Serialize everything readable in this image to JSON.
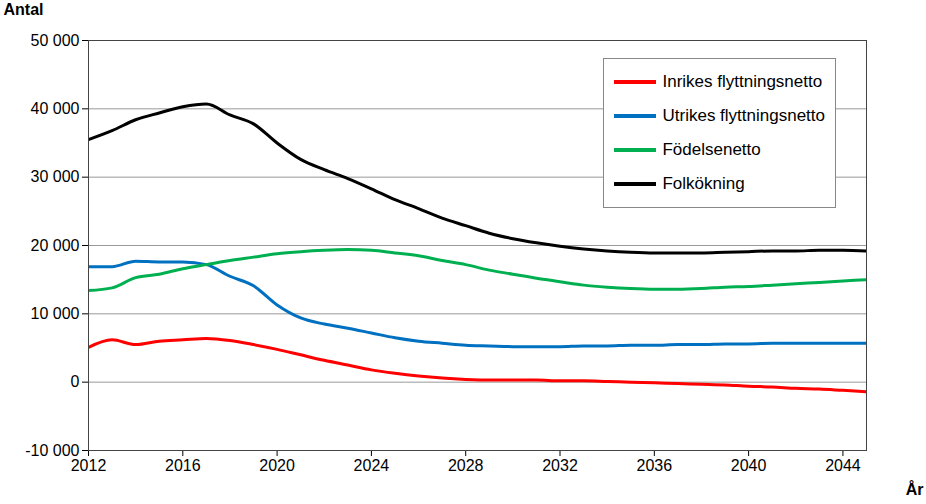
{
  "chart_data": {
    "type": "line",
    "x_label": "År",
    "y_label": "Antal",
    "x": [
      2012,
      2013,
      2014,
      2015,
      2016,
      2017,
      2018,
      2019,
      2020,
      2021,
      2022,
      2023,
      2024,
      2025,
      2026,
      2027,
      2028,
      2029,
      2030,
      2031,
      2032,
      2033,
      2034,
      2035,
      2036,
      2037,
      2038,
      2039,
      2040,
      2041,
      2042,
      2043,
      2044,
      2045
    ],
    "series": [
      {
        "name": "Inrikes flyttningsnetto",
        "color": "#ff0000",
        "values": [
          5100,
          6200,
          5500,
          6000,
          6200,
          6400,
          6100,
          5500,
          4800,
          4000,
          3200,
          2500,
          1800,
          1300,
          900,
          600,
          400,
          300,
          300,
          300,
          200,
          200,
          100,
          0,
          -100,
          -200,
          -300,
          -400,
          -600,
          -700,
          -900,
          -1000,
          -1200,
          -1400
        ]
      },
      {
        "name": "Utrikes flyttningsnetto",
        "color": "#0070c0",
        "values": [
          16900,
          16900,
          17700,
          17600,
          17600,
          17200,
          15500,
          14100,
          11300,
          9400,
          8500,
          7900,
          7200,
          6500,
          6000,
          5700,
          5400,
          5300,
          5200,
          5200,
          5200,
          5300,
          5300,
          5400,
          5400,
          5500,
          5500,
          5600,
          5600,
          5700,
          5700,
          5700,
          5700,
          5700
        ]
      },
      {
        "name": "Födelsenetto",
        "color": "#00b050",
        "values": [
          13400,
          13800,
          15300,
          15800,
          16600,
          17200,
          17800,
          18300,
          18800,
          19100,
          19300,
          19400,
          19300,
          18900,
          18500,
          17800,
          17200,
          16400,
          15800,
          15200,
          14700,
          14200,
          13900,
          13700,
          13600,
          13600,
          13700,
          13900,
          14000,
          14200,
          14400,
          14600,
          14800,
          15000
        ]
      },
      {
        "name": "Folkökning",
        "color": "#000000",
        "values": [
          35500,
          36800,
          38400,
          39400,
          40300,
          40700,
          39100,
          37800,
          35000,
          32600,
          31100,
          29800,
          28300,
          26700,
          25400,
          24000,
          22900,
          21800,
          21000,
          20400,
          19900,
          19500,
          19200,
          19000,
          18900,
          18900,
          18900,
          19000,
          19100,
          19200,
          19200,
          19300,
          19300,
          19200
        ]
      }
    ],
    "xlim": [
      2012,
      2045
    ],
    "xticks": [
      2012,
      2016,
      2020,
      2024,
      2028,
      2032,
      2036,
      2040,
      2044
    ],
    "ylim": [
      -10000,
      50000
    ],
    "yticks": [
      {
        "value": -10000,
        "label": "-10 000"
      },
      0,
      {
        "value": 10000,
        "label": "10 000"
      },
      {
        "value": 20000,
        "label": "20 000"
      },
      {
        "value": 30000,
        "label": "30 000"
      },
      {
        "value": 40000,
        "label": "40 000"
      },
      {
        "value": 50000,
        "label": "50 000"
      }
    ],
    "grid": true,
    "legend": "top-right"
  }
}
